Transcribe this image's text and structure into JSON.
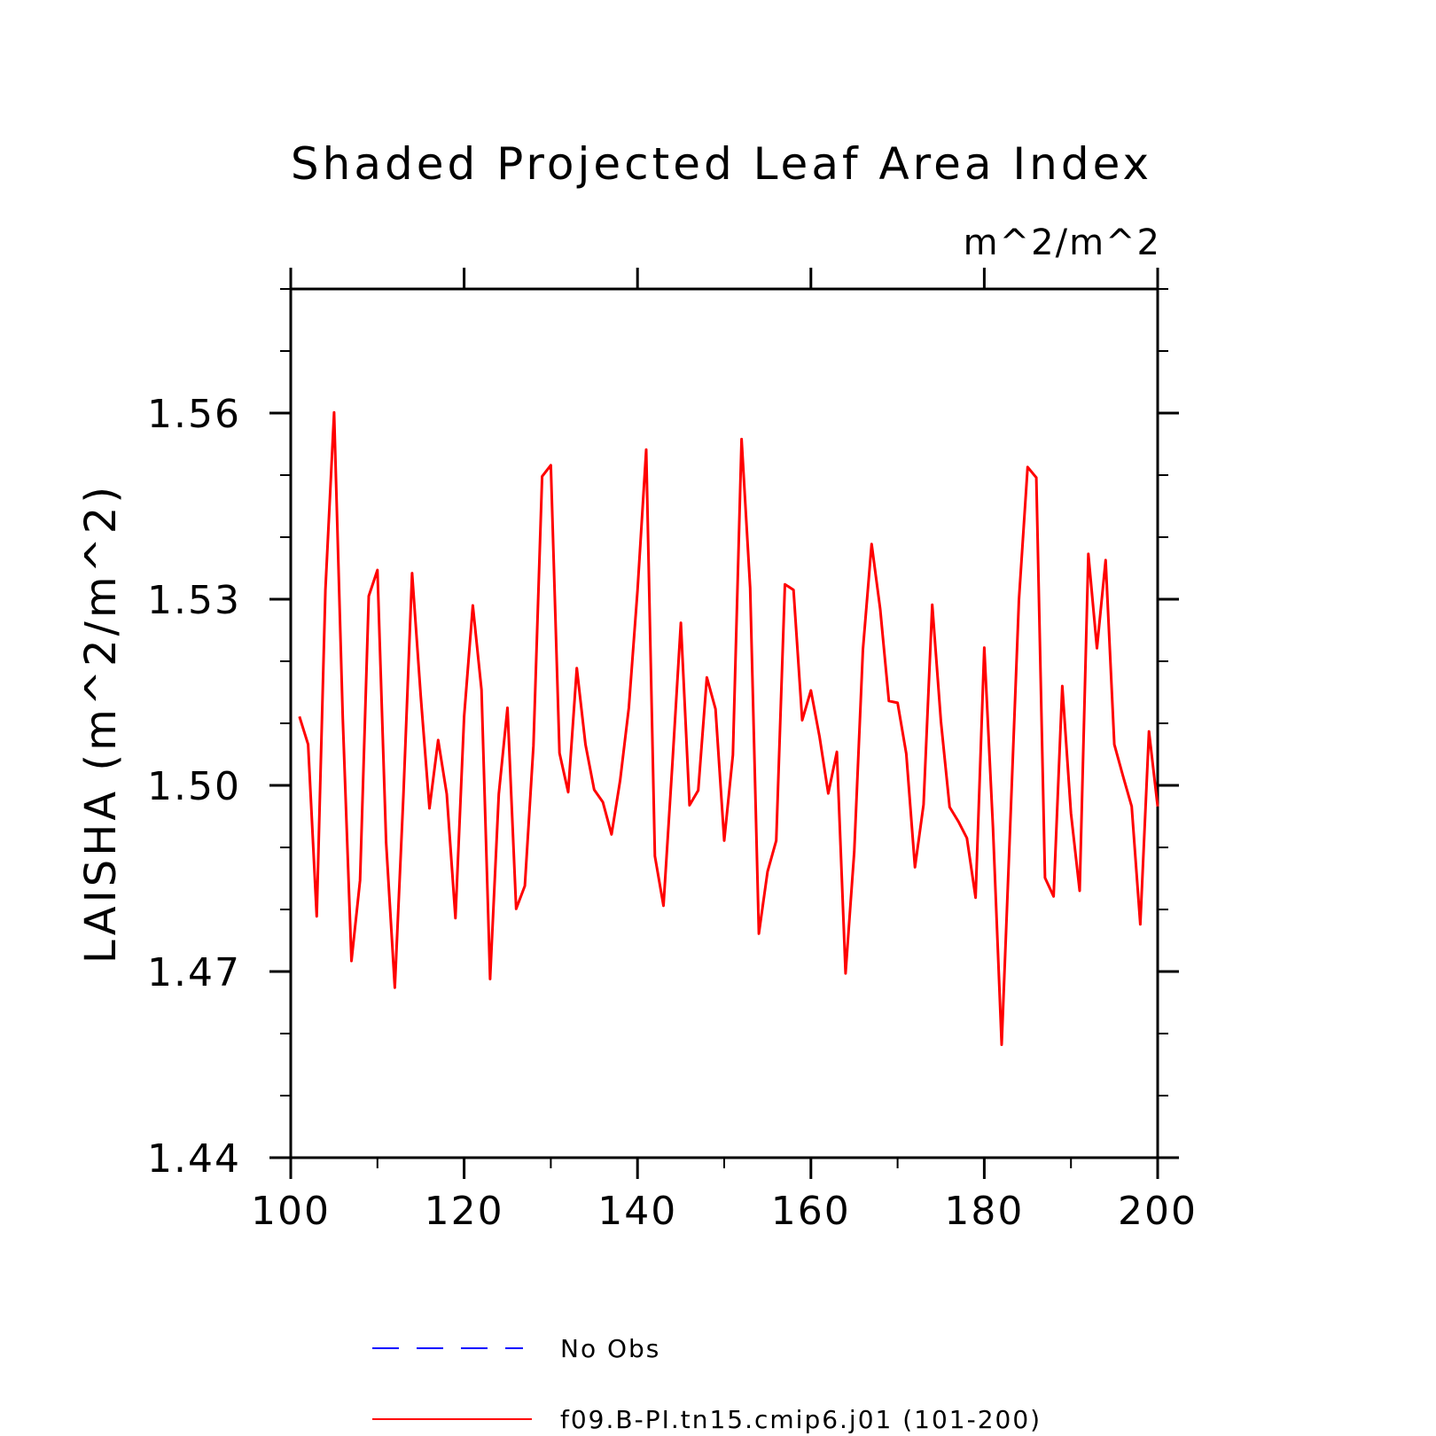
{
  "chart_data": {
    "type": "line",
    "title": "Shaded Projected Leaf Area Index",
    "units": "m^2/m^2",
    "ylabel": "LAISHA   (m^2/m^2)",
    "xlabel": "",
    "xlim": [
      100,
      200
    ],
    "ylim": [
      1.44,
      1.58
    ],
    "xticks": [
      100,
      120,
      140,
      160,
      180,
      200
    ],
    "yticks": [
      1.44,
      1.47,
      1.5,
      1.53,
      1.56
    ],
    "ytick_labels": [
      "1.44",
      "1.47",
      "1.50",
      "1.53",
      "1.56"
    ],
    "xtick_labels": [
      "100",
      "120",
      "140",
      "160",
      "180",
      "200"
    ],
    "grid": false,
    "legend_position": "bottom",
    "legend": [
      {
        "label": "No Obs",
        "color": "#0000ff",
        "style": "dashed"
      },
      {
        "label": "f09.B-PI.tn15.cmip6.j01 (101-200)",
        "color": "#ff0000",
        "style": "solid"
      }
    ],
    "series": [
      {
        "name": "f09.B-PI.tn15.cmip6.j01 (101-200)",
        "color": "#ff0000",
        "x": [
          101,
          102,
          103,
          104,
          105,
          106,
          107,
          108,
          109,
          110,
          111,
          112,
          113,
          114,
          115,
          116,
          117,
          118,
          119,
          120,
          121,
          122,
          123,
          124,
          125,
          126,
          127,
          128,
          129,
          130,
          131,
          132,
          133,
          134,
          135,
          136,
          137,
          138,
          139,
          140,
          141,
          142,
          143,
          144,
          145,
          146,
          147,
          148,
          149,
          150,
          151,
          152,
          153,
          154,
          155,
          156,
          157,
          158,
          159,
          160,
          161,
          162,
          163,
          164,
          165,
          166,
          167,
          168,
          169,
          170,
          171,
          172,
          173,
          174,
          175,
          176,
          177,
          178,
          179,
          180,
          181,
          182,
          183,
          184,
          185,
          186,
          187,
          188,
          189,
          190,
          191,
          192,
          193,
          194,
          195,
          196,
          197,
          198,
          199,
          200
        ],
        "y": [
          1.5111,
          1.5066,
          1.4789,
          1.5315,
          1.5601,
          1.5108,
          1.4717,
          1.4847,
          1.5305,
          1.5347,
          1.4908,
          1.4674,
          1.4984,
          1.5342,
          1.5143,
          1.4963,
          1.5073,
          1.4986,
          1.4786,
          1.5111,
          1.529,
          1.5154,
          1.4688,
          1.4986,
          1.5125,
          1.4801,
          1.4838,
          1.5064,
          1.5498,
          1.5516,
          1.5052,
          1.4989,
          1.5189,
          1.5066,
          1.4993,
          1.4973,
          1.4921,
          1.5008,
          1.5125,
          1.5314,
          1.5541,
          1.4886,
          1.4806,
          1.5029,
          1.5262,
          1.4968,
          1.4992,
          1.5174,
          1.5123,
          1.4911,
          1.5049,
          1.5558,
          1.5318,
          1.4761,
          1.4861,
          1.4911,
          1.5324,
          1.5315,
          1.5105,
          1.5153,
          1.5078,
          1.4987,
          1.5054,
          1.4697,
          1.4893,
          1.5219,
          1.5389,
          1.5284,
          1.5136,
          1.5133,
          1.5051,
          1.4868,
          1.4969,
          1.5291,
          1.5103,
          1.4965,
          1.4942,
          1.4915,
          1.4819,
          1.5222,
          1.4932,
          1.4582,
          1.4937,
          1.5299,
          1.5513,
          1.5496,
          1.4851,
          1.4821,
          1.516,
          1.4955,
          1.483,
          1.5373,
          1.5221,
          1.5363,
          1.5066,
          1.5015,
          1.4966,
          1.4776,
          1.5087,
          1.4966
        ]
      }
    ]
  }
}
